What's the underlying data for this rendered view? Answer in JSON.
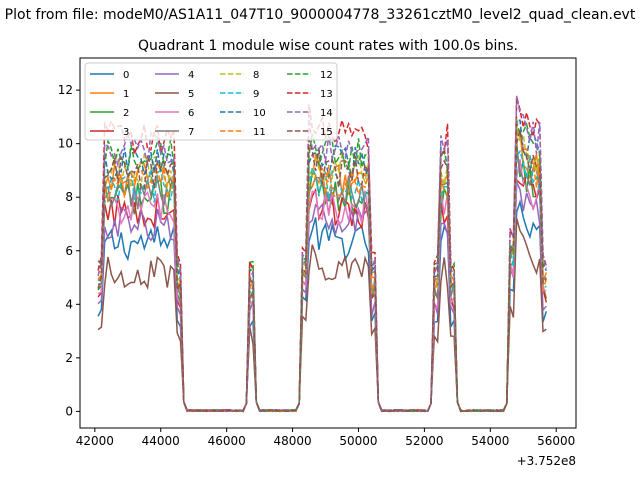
{
  "chart_data": {
    "type": "line",
    "suptitle": "Plot from file: modeM0/AS1A11_047T10_9000004778_33261cztM0_level2_quad_clean.evt",
    "title": "Quadrant 1 module wise count rates with 100.0s bins.",
    "xlabel": "",
    "ylabel": "",
    "x_offset_label": "+3.752e8",
    "xlim": [
      41550,
      56600
    ],
    "ylim": [
      -0.62,
      13.2
    ],
    "xticks": [
      42000,
      44000,
      46000,
      48000,
      50000,
      52000,
      54000,
      56000
    ],
    "yticks": [
      0,
      2,
      4,
      6,
      8,
      10,
      12
    ],
    "legend_position": "upper-left",
    "bin_seconds": 100,
    "on_segments": [
      [
        42100,
        44600
      ],
      [
        46700,
        46800
      ],
      [
        48300,
        50500
      ],
      [
        52300,
        52900
      ],
      [
        54600,
        55700
      ]
    ],
    "module_levels": [
      6.3,
      8.7,
      8.0,
      7.5,
      7.0,
      5.2,
      7.6,
      8.2,
      9.0,
      8.4,
      9.3,
      8.5,
      9.6,
      10.2,
      9.8,
      8.9
    ],
    "series": [
      {
        "name": "0",
        "color": "#1f77b4",
        "dash": "solid"
      },
      {
        "name": "1",
        "color": "#ff7f0e",
        "dash": "solid"
      },
      {
        "name": "2",
        "color": "#2ca02c",
        "dash": "solid"
      },
      {
        "name": "3",
        "color": "#d62728",
        "dash": "solid"
      },
      {
        "name": "4",
        "color": "#9467bd",
        "dash": "solid"
      },
      {
        "name": "5",
        "color": "#8c564b",
        "dash": "solid"
      },
      {
        "name": "6",
        "color": "#e377c2",
        "dash": "solid"
      },
      {
        "name": "7",
        "color": "#7f7f7f",
        "dash": "solid"
      },
      {
        "name": "8",
        "color": "#bcbd22",
        "dash": "dashed"
      },
      {
        "name": "9",
        "color": "#17becf",
        "dash": "dashed"
      },
      {
        "name": "10",
        "color": "#1f77b4",
        "dash": "dashed"
      },
      {
        "name": "11",
        "color": "#ff7f0e",
        "dash": "dashed"
      },
      {
        "name": "12",
        "color": "#2ca02c",
        "dash": "dashed"
      },
      {
        "name": "13",
        "color": "#d62728",
        "dash": "dashed"
      },
      {
        "name": "14",
        "color": "#9467bd",
        "dash": "dashed"
      },
      {
        "name": "15",
        "color": "#8c564b",
        "dash": "dashed"
      }
    ]
  }
}
